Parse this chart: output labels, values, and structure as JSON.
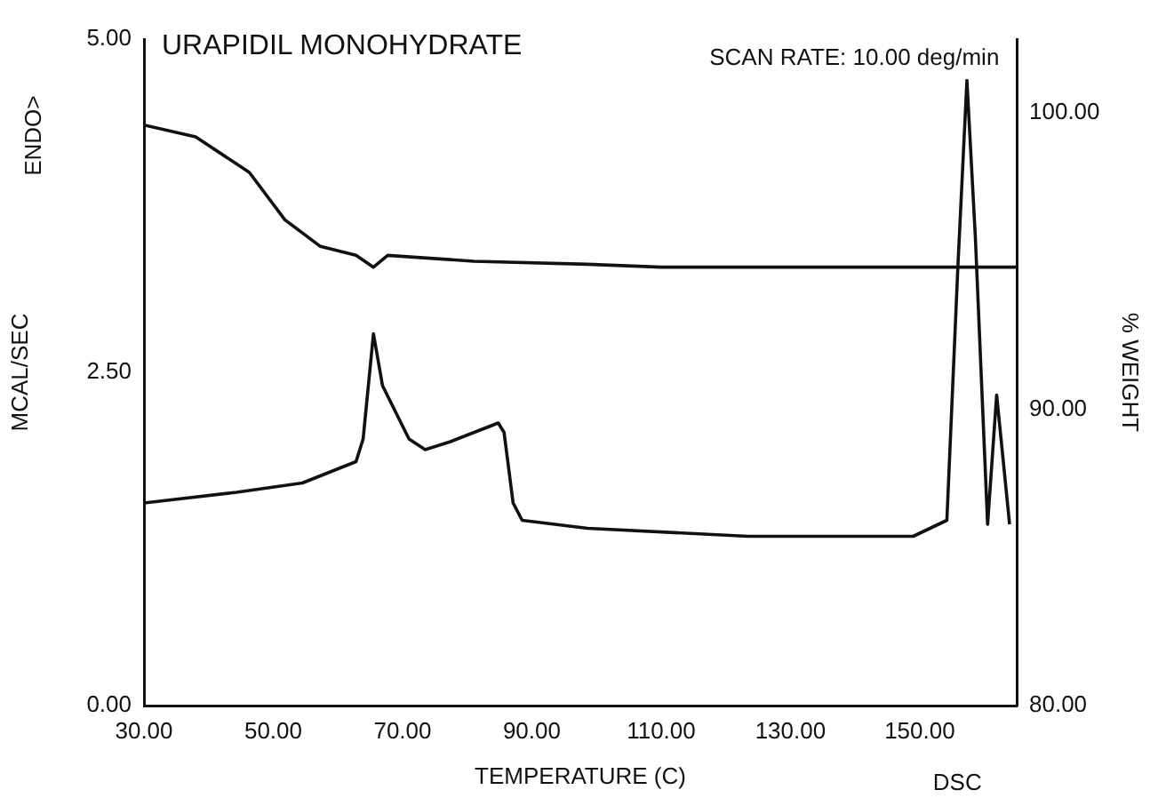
{
  "chart_data": {
    "type": "line",
    "title": "URAPIDIL MONOHYDRATE",
    "xlabel": "TEMPERATURE (C)",
    "ylabel": "MCAL/SEC",
    "y2label": "% WEIGHT",
    "annotations": [
      "ENDO>",
      "SCAN RATE: 10.00 deg/min",
      "DSC"
    ],
    "xlim": [
      30,
      165
    ],
    "xticks": [
      {
        "value": 30,
        "label": "30.00"
      },
      {
        "value": 50,
        "label": "50.00"
      },
      {
        "value": 70,
        "label": "70.00"
      },
      {
        "value": 90,
        "label": "90.00"
      },
      {
        "value": 110,
        "label": "110.00"
      },
      {
        "value": 130,
        "label": "130.00"
      },
      {
        "value": 150,
        "label": "150.00"
      }
    ],
    "ylim": [
      0,
      5
    ],
    "yticks": [
      {
        "value": 0,
        "label": "0.00"
      },
      {
        "value": 2.5,
        "label": "2.50"
      },
      {
        "value": 5,
        "label": "5.00"
      }
    ],
    "y2lim": [
      80,
      102.5
    ],
    "y2ticks": [
      {
        "value": 80,
        "label": "80.00"
      },
      {
        "value": 90,
        "label": "90.00"
      },
      {
        "value": 100,
        "label": "100.00"
      }
    ],
    "grid": false,
    "marker": "none",
    "line_style": "solid",
    "series": [
      {
        "color": "#111111",
        "x": [
          30,
          44.3,
          54.5,
          62.8,
          63.9,
          65.5,
          66.9,
          71,
          73.5,
          77.4,
          84.8,
          85.7,
          87.1,
          88.5,
          98.6,
          123.4,
          149,
          154.2,
          155.9,
          157.3,
          158.6,
          160.5,
          161.9,
          163.9
        ],
        "values": [
          1.52,
          1.6,
          1.67,
          1.83,
          2.0,
          2.79,
          2.4,
          2.0,
          1.92,
          1.98,
          2.12,
          2.05,
          1.52,
          1.39,
          1.33,
          1.27,
          1.27,
          1.39,
          3.29,
          4.69,
          3.52,
          1.36,
          2.33,
          1.36
        ]
      },
      {
        "color": "#111111",
        "axis": "y2",
        "x": [
          30,
          38,
          46.3,
          51.8,
          57.3,
          62.8,
          65.5,
          67.7,
          81,
          98.6,
          110,
          120,
          130,
          140,
          150,
          165
        ],
        "values": [
          99.6,
          99.2,
          98.0,
          96.4,
          95.5,
          95.2,
          94.8,
          95.2,
          95.0,
          94.9,
          94.8,
          94.8,
          94.8,
          94.8,
          94.8,
          94.8
        ]
      }
    ]
  }
}
